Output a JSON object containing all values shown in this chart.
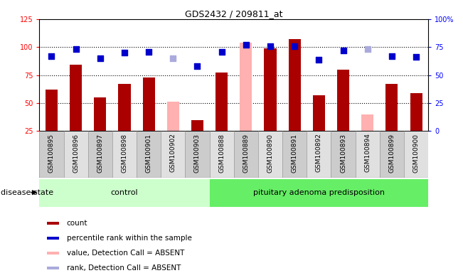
{
  "title": "GDS2432 / 209811_at",
  "samples": [
    "GSM100895",
    "GSM100896",
    "GSM100897",
    "GSM100898",
    "GSM100901",
    "GSM100902",
    "GSM100903",
    "GSM100888",
    "GSM100889",
    "GSM100890",
    "GSM100891",
    "GSM100892",
    "GSM100893",
    "GSM100894",
    "GSM100899",
    "GSM100900"
  ],
  "bar_values": [
    62,
    84,
    55,
    67,
    73,
    null,
    35,
    77,
    null,
    99,
    107,
    57,
    80,
    null,
    67,
    59
  ],
  "bar_absent": [
    null,
    null,
    null,
    null,
    null,
    51,
    null,
    null,
    104,
    null,
    null,
    null,
    null,
    40,
    null,
    null
  ],
  "bar_color_normal": "#aa0000",
  "bar_color_absent": "#ffb0b0",
  "dot_values": [
    67,
    73,
    65,
    70,
    71,
    null,
    58,
    71,
    77,
    76,
    76,
    64,
    72,
    null,
    67,
    66
  ],
  "dot_absent": [
    null,
    null,
    null,
    null,
    null,
    65,
    null,
    null,
    null,
    null,
    null,
    null,
    null,
    73,
    null,
    null
  ],
  "dot_color_normal": "#0000cc",
  "dot_color_absent": "#aaaadd",
  "control_count": 7,
  "disease_count": 9,
  "ylim_left": [
    25,
    125
  ],
  "ylim_right": [
    0,
    100
  ],
  "yticks_left": [
    25,
    50,
    75,
    100,
    125
  ],
  "yticks_right": [
    0,
    25,
    50,
    75,
    100
  ],
  "ytick_labels_right": [
    "0",
    "25",
    "50",
    "75",
    "100%"
  ],
  "hlines": [
    50,
    75,
    100
  ],
  "control_label": "control",
  "disease_label": "pituitary adenoma predisposition",
  "disease_state_label": "disease state",
  "legend_items": [
    {
      "label": "count",
      "color": "#aa0000"
    },
    {
      "label": "percentile rank within the sample",
      "color": "#0000cc"
    },
    {
      "label": "value, Detection Call = ABSENT",
      "color": "#ffb0b0"
    },
    {
      "label": "rank, Detection Call = ABSENT",
      "color": "#aaaadd"
    }
  ],
  "plot_bg": "#ffffff",
  "sample_label_bg_even": "#cccccc",
  "sample_label_bg_odd": "#e0e0e0",
  "control_bg": "#ccffcc",
  "disease_bg": "#66ee66",
  "bar_width": 0.5,
  "dot_size": 40,
  "dot_marker": "s"
}
